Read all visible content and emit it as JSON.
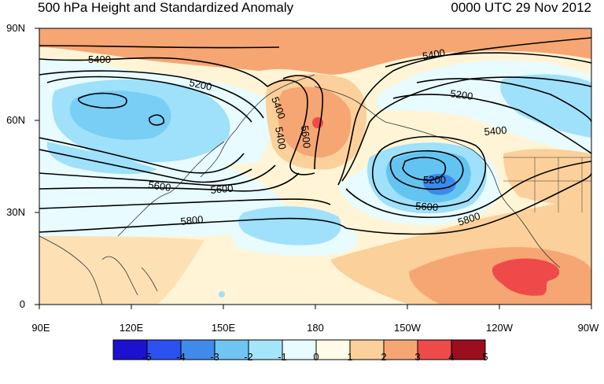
{
  "header": {
    "title": "500 hPa Height and Standardized Anomaly",
    "valid_time": "0000 UTC 29 Nov 2012"
  },
  "map": {
    "projection": "cylindrical-equidistant",
    "lon_range": [
      "90E",
      "90W"
    ],
    "lat_range": [
      "0",
      "90N"
    ],
    "lat_ticks": [
      "90N",
      "60N",
      "30N",
      "0"
    ],
    "lon_ticks": [
      "90E",
      "120E",
      "150E",
      "180",
      "150W",
      "120W",
      "90W"
    ],
    "contour_labels": [
      "5400",
      "5200",
      "5400",
      "5600",
      "5400",
      "5600",
      "5800",
      "5400",
      "5200",
      "5400",
      "5600",
      "5200",
      "5600",
      "5800"
    ],
    "colors": {
      "pos1": "#fff5d6",
      "pos2": "#fbd09a",
      "pos3": "#f6a673",
      "pos4": "#ef4a4a",
      "neg1": "#e8fbff",
      "neg2": "#9fe0fa",
      "neg3": "#64c4f1",
      "neg4": "#3b8bea"
    }
  },
  "colorbar": {
    "labels": [
      "-5",
      "-4",
      "-3",
      "-2",
      "-1",
      "0",
      "1",
      "2",
      "3",
      "4",
      "5"
    ],
    "colors": [
      "#1b11cf",
      "#2b51ef",
      "#3f8aea",
      "#6fc4f1",
      "#a5e5fa",
      "#e8fbff",
      "#fffbe6",
      "#fbd09a",
      "#f6a673",
      "#ef4a4a",
      "#9c0d1f"
    ]
  }
}
